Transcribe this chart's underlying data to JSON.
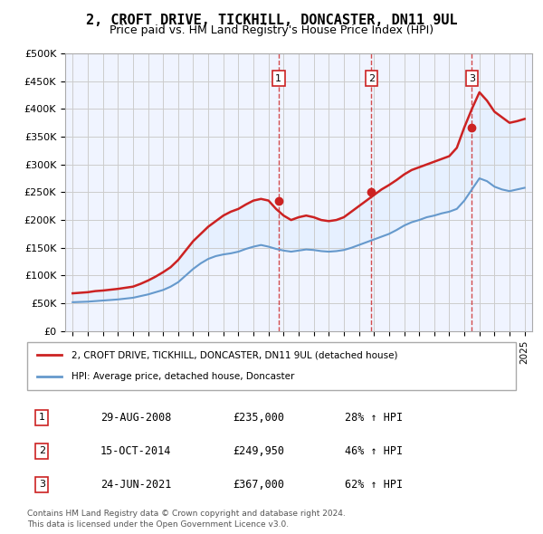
{
  "title": "2, CROFT DRIVE, TICKHILL, DONCASTER, DN11 9UL",
  "subtitle": "Price paid vs. HM Land Registry's House Price Index (HPI)",
  "ylabel": "",
  "xlabel": "",
  "ylim": [
    0,
    500000
  ],
  "yticks": [
    0,
    50000,
    100000,
    150000,
    200000,
    250000,
    300000,
    350000,
    400000,
    450000,
    500000
  ],
  "ytick_labels": [
    "£0",
    "£50K",
    "£100K",
    "£150K",
    "£200K",
    "£250K",
    "£300K",
    "£350K",
    "£400K",
    "£450K",
    "£500K"
  ],
  "hpi_color": "#6699cc",
  "property_color": "#cc2222",
  "background_color": "#ffffff",
  "grid_color": "#cccccc",
  "sale_dates": [
    "2008-08-29",
    "2014-10-15",
    "2021-06-24"
  ],
  "sale_prices": [
    235000,
    249950,
    367000
  ],
  "sale_labels": [
    "1",
    "2",
    "3"
  ],
  "sale_hpi_pct": [
    "28%",
    "46%",
    "62%"
  ],
  "sale_date_strs": [
    "29-AUG-2008",
    "15-OCT-2014",
    "24-JUN-2021"
  ],
  "legend_property": "2, CROFT DRIVE, TICKHILL, DONCASTER, DN11 9UL (detached house)",
  "legend_hpi": "HPI: Average price, detached house, Doncaster",
  "footnote1": "Contains HM Land Registry data © Crown copyright and database right 2024.",
  "footnote2": "This data is licensed under the Open Government Licence v3.0.",
  "hpi_years": [
    1995,
    1995.5,
    1996,
    1996.5,
    1997,
    1997.5,
    1998,
    1998.5,
    1999,
    1999.5,
    2000,
    2000.5,
    2001,
    2001.5,
    2002,
    2002.5,
    2003,
    2003.5,
    2004,
    2004.5,
    2005,
    2005.5,
    2006,
    2006.5,
    2007,
    2007.5,
    2008,
    2008.5,
    2009,
    2009.5,
    2010,
    2010.5,
    2011,
    2011.5,
    2012,
    2012.5,
    2013,
    2013.5,
    2014,
    2014.5,
    2015,
    2015.5,
    2016,
    2016.5,
    2017,
    2017.5,
    2018,
    2018.5,
    2019,
    2019.5,
    2020,
    2020.5,
    2021,
    2021.5,
    2022,
    2022.5,
    2023,
    2023.5,
    2024,
    2024.5,
    2025
  ],
  "hpi_values": [
    52000,
    52500,
    53000,
    54000,
    55000,
    56000,
    57000,
    58500,
    60000,
    63000,
    66000,
    70000,
    74000,
    80000,
    88000,
    100000,
    112000,
    122000,
    130000,
    135000,
    138000,
    140000,
    143000,
    148000,
    152000,
    155000,
    152000,
    148000,
    145000,
    143000,
    145000,
    147000,
    146000,
    144000,
    143000,
    144000,
    146000,
    150000,
    155000,
    160000,
    165000,
    170000,
    175000,
    182000,
    190000,
    196000,
    200000,
    205000,
    208000,
    212000,
    215000,
    220000,
    235000,
    255000,
    275000,
    270000,
    260000,
    255000,
    252000,
    255000,
    258000
  ],
  "prop_years": [
    1995,
    1995.5,
    1996,
    1996.5,
    1997,
    1997.5,
    1998,
    1998.5,
    1999,
    1999.5,
    2000,
    2000.5,
    2001,
    2001.5,
    2002,
    2002.5,
    2003,
    2003.5,
    2004,
    2004.5,
    2005,
    2005.5,
    2006,
    2006.5,
    2007,
    2007.5,
    2008,
    2008.5,
    2009,
    2009.5,
    2010,
    2010.5,
    2011,
    2011.5,
    2012,
    2012.5,
    2013,
    2013.5,
    2014,
    2014.5,
    2015,
    2015.5,
    2016,
    2016.5,
    2017,
    2017.5,
    2018,
    2018.5,
    2019,
    2019.5,
    2020,
    2020.5,
    2021,
    2021.5,
    2022,
    2022.5,
    2023,
    2023.5,
    2024,
    2024.5,
    2025
  ],
  "prop_values": [
    68000,
    69000,
    70000,
    72000,
    73000,
    74500,
    76000,
    78000,
    80000,
    85000,
    91000,
    98000,
    106000,
    115000,
    128000,
    145000,
    162000,
    175000,
    188000,
    198000,
    208000,
    215000,
    220000,
    228000,
    235000,
    238000,
    235000,
    220000,
    208000,
    200000,
    205000,
    208000,
    205000,
    200000,
    198000,
    200000,
    205000,
    215000,
    225000,
    235000,
    245000,
    255000,
    263000,
    272000,
    282000,
    290000,
    295000,
    300000,
    305000,
    310000,
    315000,
    330000,
    367000,
    400000,
    430000,
    415000,
    395000,
    385000,
    375000,
    378000,
    382000
  ],
  "xlim_start": 1994.5,
  "xlim_end": 2025.5,
  "xticks": [
    1995,
    1996,
    1997,
    1998,
    1999,
    2000,
    2001,
    2002,
    2003,
    2004,
    2005,
    2006,
    2007,
    2008,
    2009,
    2010,
    2011,
    2012,
    2013,
    2014,
    2015,
    2016,
    2017,
    2018,
    2019,
    2020,
    2021,
    2022,
    2023,
    2024,
    2025
  ]
}
